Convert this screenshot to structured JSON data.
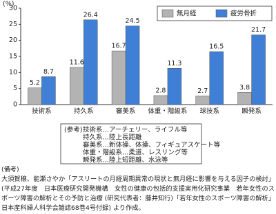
{
  "chart_data": {
    "type": "bar",
    "y_label": "(%)",
    "categories": [
      "技術系",
      "持久系",
      "審美系",
      "体重・階級系",
      "球技系",
      "瞬発系"
    ],
    "series": [
      {
        "name": "無月経",
        "color": "#b3b3b3",
        "values": [
          5.2,
          11.6,
          16.7,
          2.8,
          2.7,
          3.8
        ]
      },
      {
        "name": "疲労骨折",
        "color": "#3f7fd6",
        "values": [
          8.7,
          26.4,
          24.5,
          11.3,
          16.5,
          21.7
        ]
      }
    ],
    "ylim": [
      0,
      30
    ],
    "yticks": [
      0,
      5,
      10,
      15,
      20,
      25,
      30
    ],
    "grid": false,
    "legend": "top-right",
    "notes_label": "(参考)",
    "notes": [
      "技術系…アーチェリー、ライフル等",
      "持久系…陸上長距離",
      "審美系…新体操、体操、フィギュアスケート等",
      "体重・階級系…柔道、レスリング等",
      "瞬発系…陸上短距離、水泳等"
    ]
  },
  "source": {
    "label": "(備考)",
    "text": "大須賀穣、能瀬さやか「アスリートの月経周期異常の現状と無月経に影響を与える因子の検討」(平成27年度　日本医療研究開発機構　女性の健康の包括的支援実用化研究事業　若年女性のスポーツ障害の解析とその予防と治療 (研究代表者：藤井知行)「若年女性のスポーツ障害の解析」日本産科婦人科学会雑誌68巻4号付録) より作成。"
  }
}
